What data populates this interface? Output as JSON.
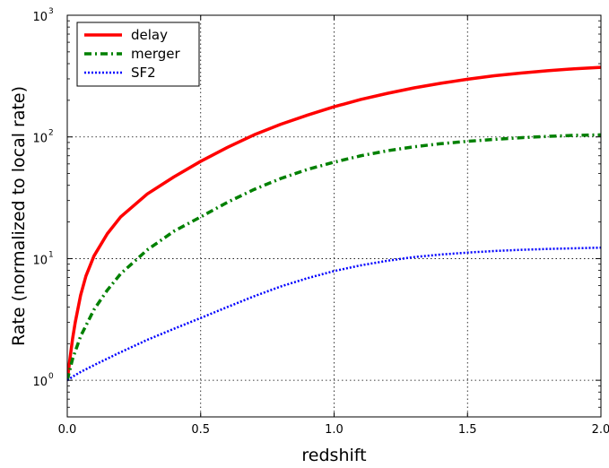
{
  "chart_data": {
    "type": "line",
    "xlabel": "redshift",
    "ylabel": "Rate (normalized to local rate)",
    "xlim": [
      0.0,
      2.0
    ],
    "ylim": [
      0.5,
      1000
    ],
    "yscale": "log",
    "grid": true,
    "legend_position": "top-left",
    "x_ticks": [
      {
        "value": 0.0,
        "label": "0.0"
      },
      {
        "value": 0.5,
        "label": "0.5"
      },
      {
        "value": 1.0,
        "label": "1.0"
      },
      {
        "value": 1.5,
        "label": "1.5"
      },
      {
        "value": 2.0,
        "label": "2.0"
      }
    ],
    "y_ticks": [
      {
        "value": 1,
        "base": "10",
        "exp": "0"
      },
      {
        "value": 10,
        "base": "10",
        "exp": "1"
      },
      {
        "value": 100,
        "base": "10",
        "exp": "2"
      },
      {
        "value": 1000,
        "base": "10",
        "exp": "3"
      }
    ],
    "series": [
      {
        "name": "delay",
        "color": "#ff0000",
        "style": "solid",
        "x": [
          0.0,
          0.01,
          0.02,
          0.03,
          0.05,
          0.07,
          0.1,
          0.15,
          0.2,
          0.3,
          0.4,
          0.5,
          0.6,
          0.7,
          0.8,
          0.9,
          1.0,
          1.1,
          1.2,
          1.3,
          1.4,
          1.5,
          1.6,
          1.7,
          1.8,
          1.9,
          2.0
        ],
        "y": [
          1.0,
          1.5,
          2.2,
          3.0,
          5.0,
          7.2,
          10.5,
          16.0,
          22.0,
          34.0,
          47.0,
          63.0,
          82.0,
          104.0,
          127.0,
          151.0,
          177.0,
          203.0,
          228.0,
          253.0,
          276.0,
          298.0,
          318.0,
          335.0,
          350.0,
          363.0,
          373.0
        ]
      },
      {
        "name": "merger",
        "color": "#008000",
        "style": "dashdot",
        "x": [
          0.0,
          0.02,
          0.05,
          0.1,
          0.15,
          0.2,
          0.3,
          0.4,
          0.5,
          0.6,
          0.7,
          0.8,
          0.9,
          1.0,
          1.1,
          1.2,
          1.3,
          1.4,
          1.5,
          1.6,
          1.7,
          1.8,
          1.9,
          2.0
        ],
        "y": [
          1.0,
          1.5,
          2.3,
          3.8,
          5.5,
          7.5,
          11.8,
          16.8,
          22.0,
          29.0,
          37.0,
          45.5,
          54.0,
          62.0,
          70.0,
          77.0,
          83.0,
          88.0,
          92.0,
          95.5,
          98.5,
          101.0,
          103.0,
          104.0
        ]
      },
      {
        "name": "SF2",
        "color": "#0000ff",
        "style": "dotted",
        "x": [
          0.0,
          0.02,
          0.05,
          0.1,
          0.2,
          0.3,
          0.4,
          0.5,
          0.6,
          0.7,
          0.8,
          0.9,
          1.0,
          1.1,
          1.2,
          1.3,
          1.4,
          1.5,
          1.6,
          1.7,
          1.8,
          1.9,
          2.0
        ],
        "y": [
          1.0,
          1.07,
          1.17,
          1.33,
          1.7,
          2.15,
          2.65,
          3.25,
          4.0,
          4.9,
          5.9,
          6.9,
          7.9,
          8.8,
          9.6,
          10.3,
          10.8,
          11.2,
          11.55,
          11.8,
          12.0,
          12.15,
          12.3
        ]
      }
    ]
  }
}
